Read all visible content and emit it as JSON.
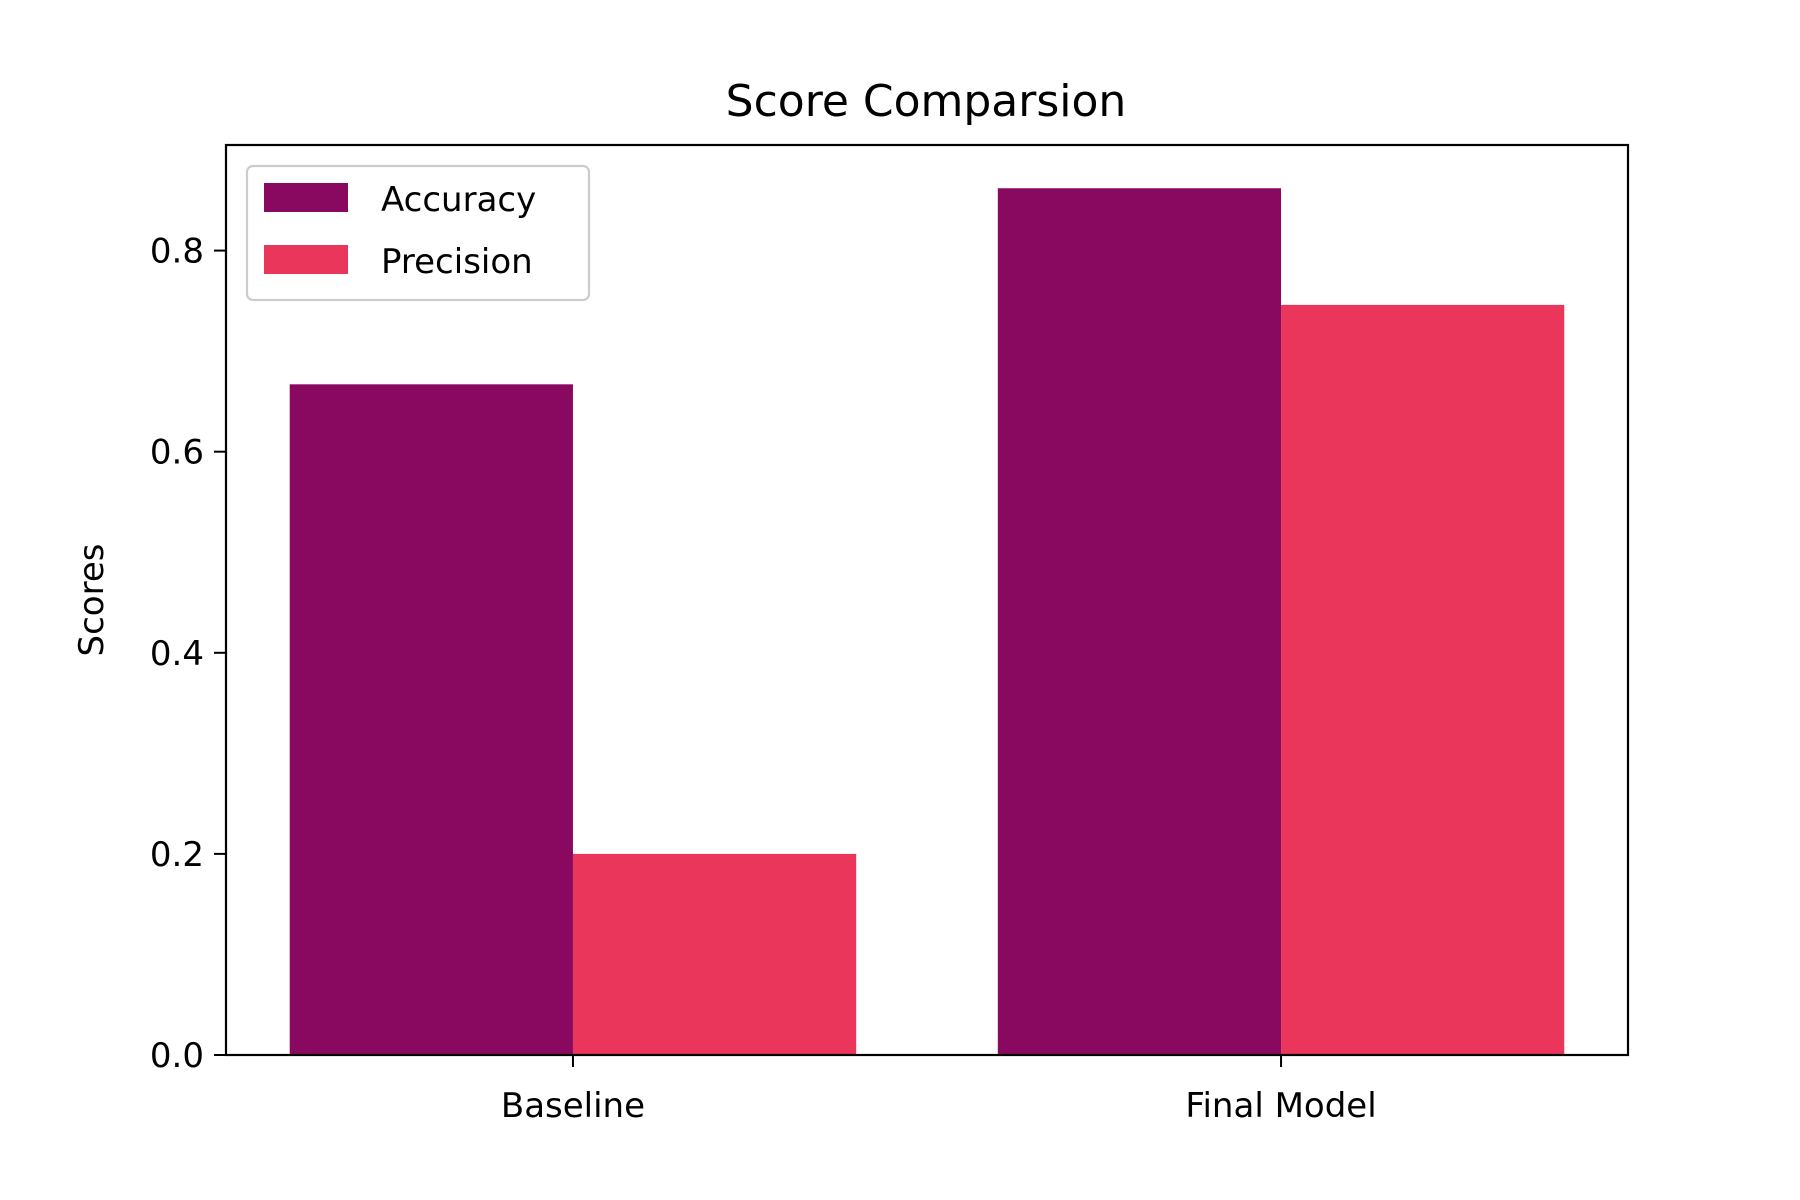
{
  "chart_data": {
    "type": "bar",
    "title": "Score Comparsion",
    "xlabel": "",
    "ylabel": "Scores",
    "categories": [
      "Baseline",
      "Final Model"
    ],
    "series": [
      {
        "name": "Accuracy",
        "values": [
          0.667,
          0.862
        ],
        "color": "#8a0960"
      },
      {
        "name": "Precision",
        "values": [
          0.2,
          0.746
        ],
        "color": "#e9365a"
      }
    ],
    "ylim": [
      0,
      0.905
    ],
    "yticks": [
      0.0,
      0.2,
      0.4,
      0.6,
      0.8
    ],
    "ytick_labels": [
      "0.0",
      "0.2",
      "0.4",
      "0.6",
      "0.8"
    ],
    "grid": false,
    "legend_position": "upper-left"
  }
}
